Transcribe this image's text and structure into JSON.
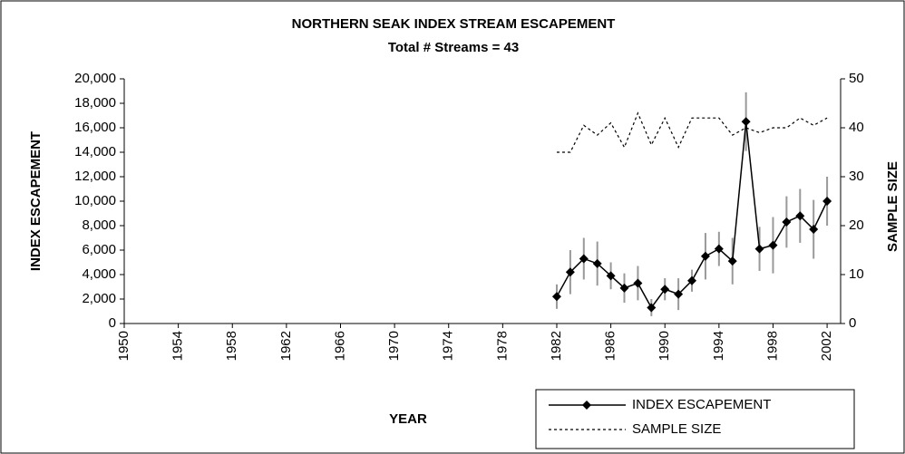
{
  "chart_data": {
    "type": "line",
    "title": "NORTHERN SEAK INDEX STREAM ESCAPEMENT",
    "subtitle": "Total # Streams = 43",
    "x_label": "YEAR",
    "y_label": "INDEX ESCAPEMENT",
    "y2_label": "SAMPLE SIZE",
    "x": [
      1982,
      1983,
      1984,
      1985,
      1986,
      1987,
      1988,
      1989,
      1990,
      1991,
      1992,
      1993,
      1994,
      1995,
      1996,
      1997,
      1998,
      1999,
      2000,
      2001,
      2002
    ],
    "series": [
      {
        "name": "INDEX ESCAPEMENT",
        "color": "#000000",
        "marker": "diamond",
        "values": [
          2200,
          4200,
          5300,
          4900,
          3900,
          2900,
          3300,
          1300,
          2800,
          2400,
          3500,
          5500,
          6100,
          5100,
          16500,
          6100,
          6400,
          8300,
          8800,
          7700,
          10000
        ],
        "errors": [
          1000,
          1800,
          1700,
          1800,
          1100,
          1200,
          1400,
          700,
          900,
          1300,
          900,
          1900,
          1400,
          1900,
          2400,
          1800,
          2300,
          2100,
          2200,
          2400,
          2000
        ]
      },
      {
        "name": "SAMPLE SIZE",
        "color": "#000000",
        "dash": true,
        "axis": "y2",
        "values": [
          35,
          35,
          40.5,
          38.5,
          41,
          36,
          43,
          36.5,
          42,
          36,
          42,
          42,
          42,
          38.5,
          40,
          39,
          40,
          40,
          42,
          40.5,
          42
        ]
      }
    ],
    "xlim": [
      1950,
      2003
    ],
    "xticks": [
      1950,
      1954,
      1958,
      1962,
      1966,
      1970,
      1974,
      1978,
      1982,
      1986,
      1990,
      1994,
      1998,
      2002
    ],
    "ylim": [
      0,
      20000
    ],
    "yticks": [
      0,
      {
        "value": 2000,
        "label": "2,000"
      },
      {
        "value": 4000,
        "label": "4,000"
      },
      {
        "value": 6000,
        "label": "6,000"
      },
      {
        "value": 8000,
        "label": "8,000"
      },
      {
        "value": 10000,
        "label": "10,000"
      },
      {
        "value": 12000,
        "label": "12,000"
      },
      {
        "value": 14000,
        "label": "14,000"
      },
      {
        "value": 16000,
        "label": "16,000"
      },
      {
        "value": 18000,
        "label": "18,000"
      },
      {
        "value": 20000,
        "label": "20,000"
      }
    ],
    "y2lim": [
      0,
      50
    ],
    "y2ticks": [
      0,
      10,
      20,
      30,
      40,
      50
    ],
    "grid": false,
    "legend": "bottom-right"
  }
}
